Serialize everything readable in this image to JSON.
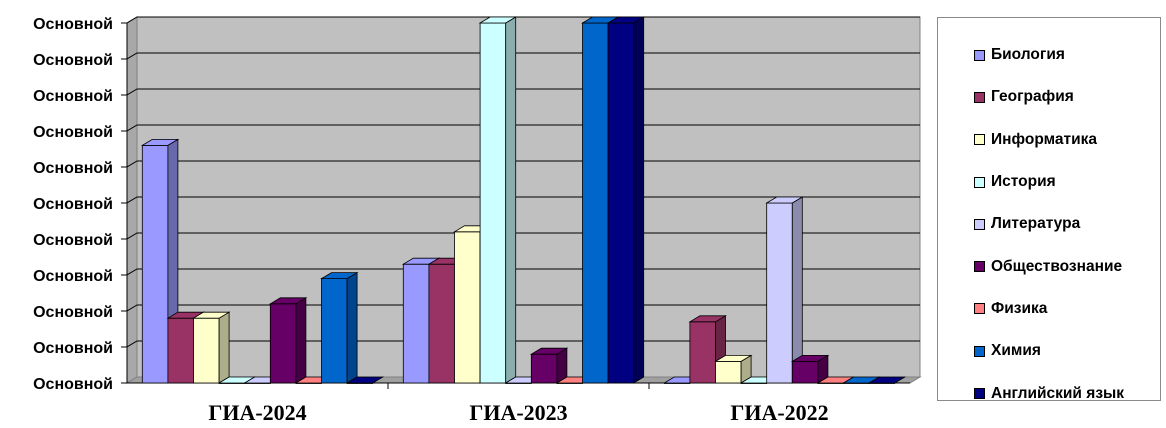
{
  "chart_data": {
    "type": "bar",
    "title": "",
    "xlabel": "",
    "ylabel": "",
    "categories": [
      "ГИА-2024",
      "ГИА-2023",
      "ГИА-2022"
    ],
    "y_tick_labels": [
      "Основной",
      "Основной",
      "Основной",
      "Основной",
      "Основной",
      "Основной",
      "Основной",
      "Основной",
      "Основной",
      "Основной",
      "Основной"
    ],
    "ylim": [
      0,
      10
    ],
    "grid": true,
    "legend_position": "right",
    "series": [
      {
        "name": "Биология",
        "color": "#9999ff",
        "values": [
          6.6,
          3.3,
          0
        ]
      },
      {
        "name": "География",
        "color": "#993366",
        "values": [
          1.8,
          3.3,
          1.7
        ]
      },
      {
        "name": "Информатика",
        "color": "#ffffcc",
        "values": [
          1.8,
          4.2,
          0.6
        ]
      },
      {
        "name": "История",
        "color": "#ccffff",
        "values": [
          0,
          10,
          0
        ]
      },
      {
        "name": "Литература",
        "color": "#ccccff",
        "values": [
          0,
          0,
          5
        ]
      },
      {
        "name": "Обществознание",
        "color": "#660066",
        "values": [
          2.2,
          0.8,
          0.6
        ]
      },
      {
        "name": "Физика",
        "color": "#ff8080",
        "values": [
          0,
          0,
          0
        ]
      },
      {
        "name": "Химия",
        "color": "#0066cc",
        "values": [
          2.9,
          10,
          0
        ]
      },
      {
        "name": "Английский язык",
        "color": "#000080",
        "values": [
          0,
          10,
          0
        ]
      }
    ]
  }
}
